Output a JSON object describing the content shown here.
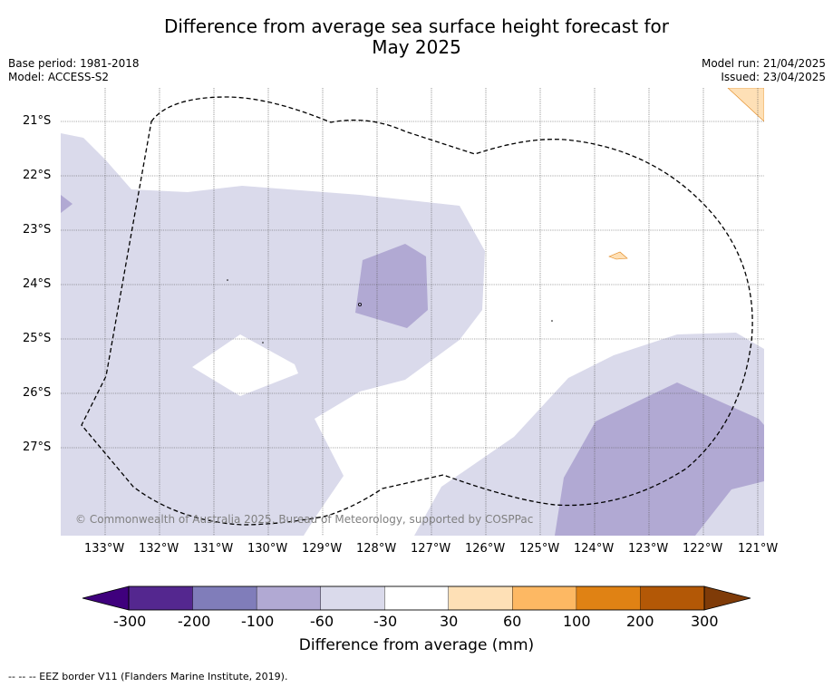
{
  "title_line1": "Difference from average sea surface height forecast for",
  "title_line2": "May 2025",
  "meta": {
    "base_period": "Base period: 1981-2018",
    "model": "Model: ACCESS-S2",
    "model_run": "Model run: 21/04/2025",
    "issued": "Issued: 23/04/2025"
  },
  "map": {
    "lat_labels": [
      "21°S",
      "22°S",
      "23°S",
      "24°S",
      "25°S",
      "26°S",
      "27°S"
    ],
    "lon_labels": [
      "133°W",
      "132°W",
      "131°W",
      "130°W",
      "129°W",
      "128°W",
      "127°W",
      "126°W",
      "125°W",
      "124°W",
      "123°W",
      "122°W",
      "121°W"
    ],
    "copyright": "© Commonwealth of Australia 2025, Bureau of Meteorology, supported by COSPPac",
    "eez_line_color": "#000000"
  },
  "colorbar": {
    "title": "Difference from average (mm)",
    "tick_labels": [
      "-300",
      "-200",
      "-100",
      "-60",
      "-30",
      "30",
      "60",
      "100",
      "200",
      "300"
    ],
    "colors": [
      "#3f007d",
      "#54278f",
      "#807dba",
      "#b1a9d3",
      "#dadaeb",
      "#ffffff",
      "#fee0b6",
      "#fdb863",
      "#e08214",
      "#b35806",
      "#7f3b08"
    ]
  },
  "footnote": "-- -- -- EEZ border V11 (Flanders Marine Institute, 2019)."
}
